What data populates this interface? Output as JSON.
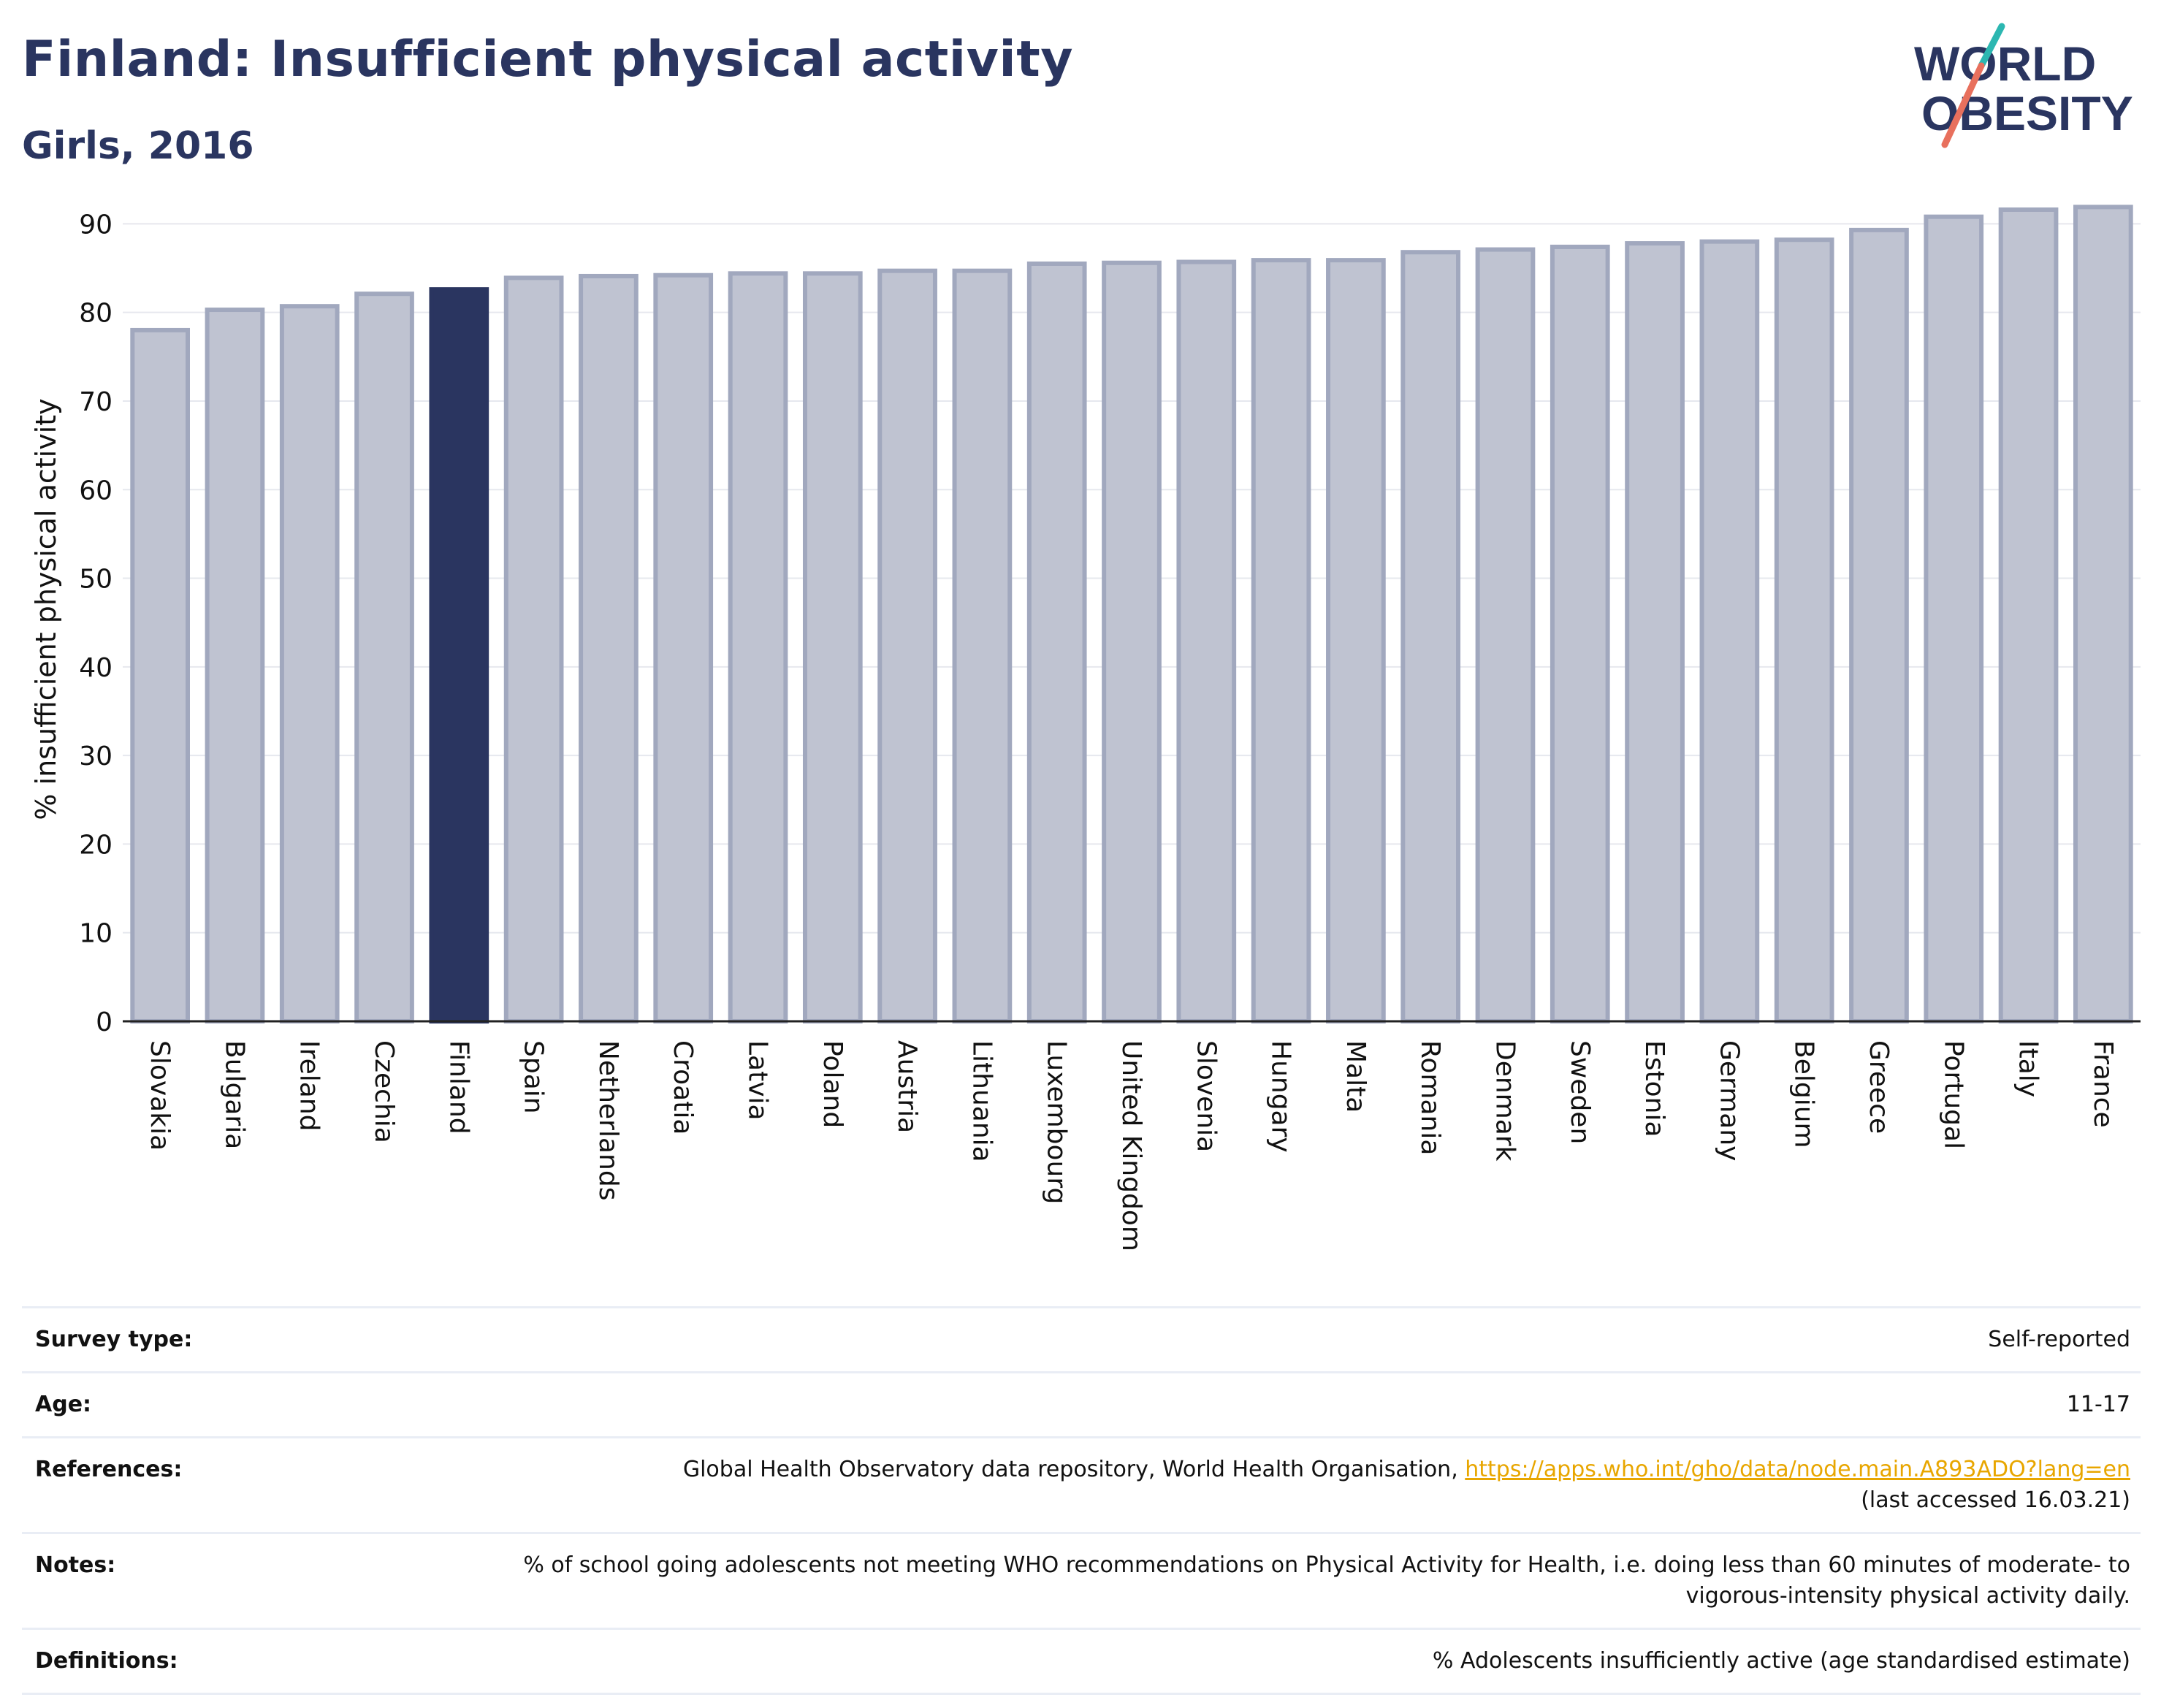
{
  "header": {
    "title": "Finland: Insufficient physical activity",
    "subtitle": "Girls, 2016",
    "logo_line1": "WORLD",
    "logo_line2": "OBESITY"
  },
  "colors": {
    "highlight": "#2a3560",
    "bar": "#bfc3d1",
    "bar_border": "#a1a8be",
    "title": "#2a3560",
    "link": "#e8a600",
    "logo_teal": "#2cb7b1",
    "logo_coral": "#e8705d"
  },
  "chart_data": {
    "type": "bar",
    "title": "Finland: Insufficient physical activity",
    "subtitle": "Girls, 2016",
    "xlabel": "",
    "ylabel": "% insufficient physical activity",
    "ylim": [
      0,
      93
    ],
    "yticks": [
      0,
      10,
      20,
      30,
      40,
      50,
      60,
      70,
      80,
      90
    ],
    "grid": true,
    "highlight": "Finland",
    "categories": [
      "Slovakia",
      "Bulgaria",
      "Ireland",
      "Czechia",
      "Finland",
      "Spain",
      "Netherlands",
      "Croatia",
      "Latvia",
      "Poland",
      "Austria",
      "Lithuania",
      "Luxembourg",
      "United Kingdom",
      "Slovenia",
      "Hungary",
      "Malta",
      "Romania",
      "Denmark",
      "Sweden",
      "Estonia",
      "Germany",
      "Belgium",
      "Greece",
      "Portugal",
      "Italy",
      "France"
    ],
    "values": [
      78.0,
      80.3,
      80.7,
      82.1,
      82.6,
      83.9,
      84.1,
      84.2,
      84.4,
      84.4,
      84.7,
      84.7,
      85.5,
      85.6,
      85.7,
      85.9,
      85.9,
      86.8,
      87.1,
      87.4,
      87.8,
      88.0,
      88.2,
      89.3,
      90.8,
      91.6,
      91.9
    ]
  },
  "metadata": [
    {
      "label": "Survey type:",
      "value": "Self-reported"
    },
    {
      "label": "Age:",
      "value": "11-17"
    },
    {
      "label": "References:",
      "value": "Global Health Observatory data repository, World Health Organisation, ",
      "link": "https://apps.who.int/gho/data/node.main.A893ADO?lang=en",
      "value_after": "(last accessed 16.03.21)"
    },
    {
      "label": "Notes:",
      "value": "% of school going adolescents not meeting WHO recommendations on Physical Activity for Health, i.e. doing less than 60 minutes of moderate- to vigorous-intensity physical activity daily."
    },
    {
      "label": "Definitions:",
      "value": "% Adolescents insufficiently active (age standardised estimate)"
    }
  ]
}
